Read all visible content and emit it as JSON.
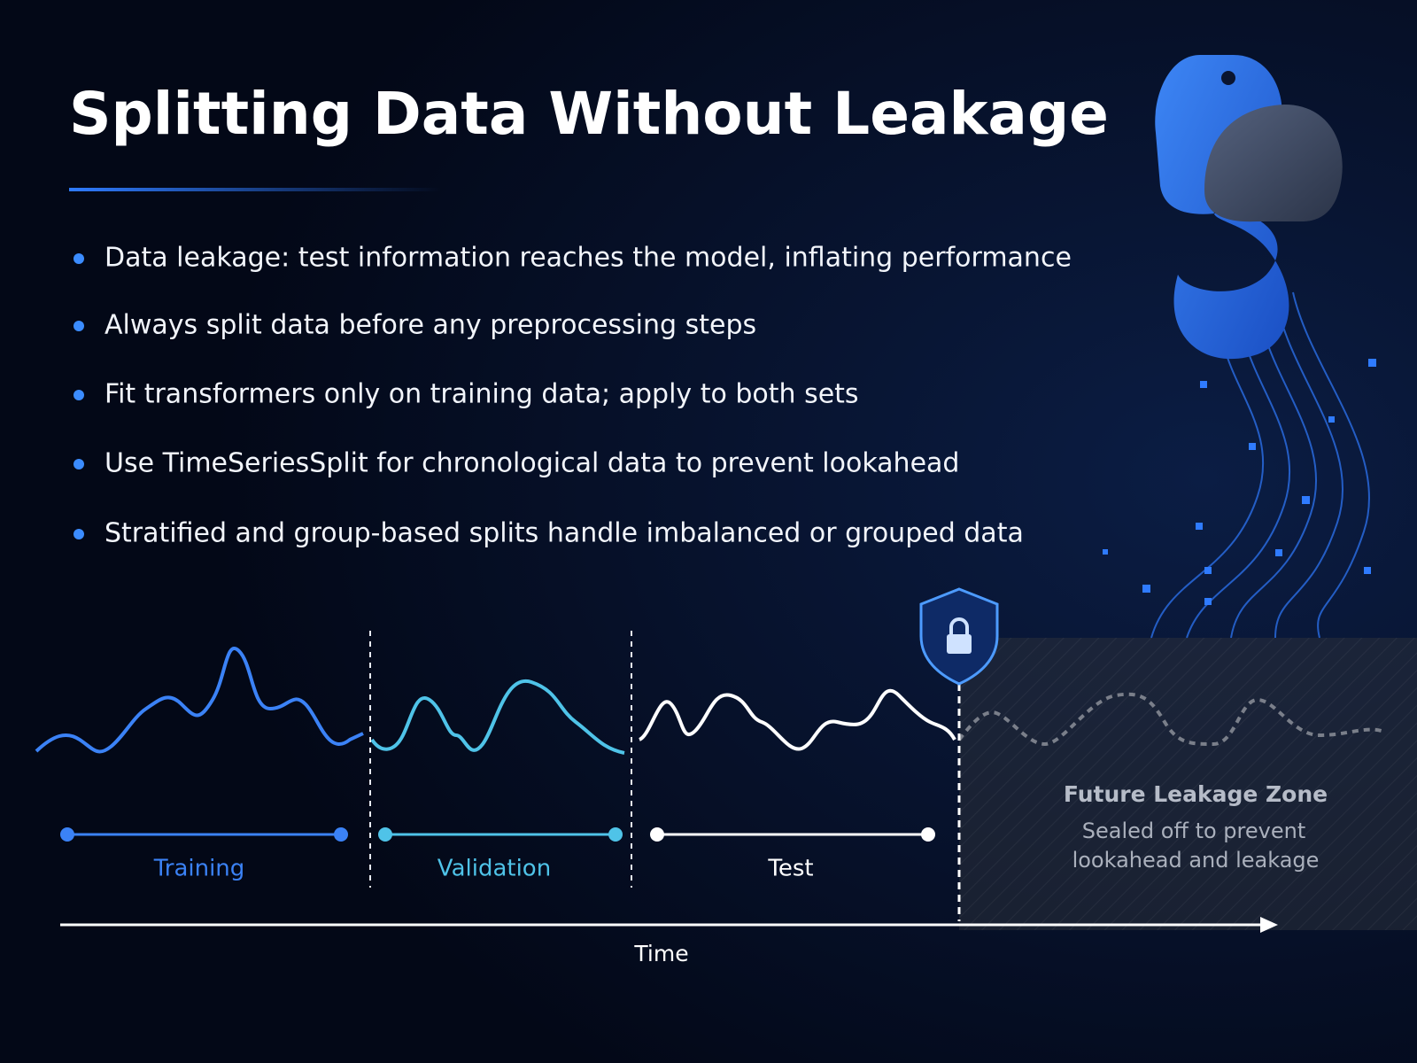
{
  "title": "Splitting Data Without Leakage",
  "bullets": [
    "Data leakage: test information reaches the model, inflating performance",
    "Always split data before any preprocessing steps",
    "Fit transformers only on training data; apply to both sets",
    "Use TimeSeriesSplit for chronological data to prevent lookahead",
    "Stratified and group-based splits handle imbalanced or grouped data"
  ],
  "timeline": {
    "segments": [
      {
        "label": "Training"
      },
      {
        "label": "Validation"
      },
      {
        "label": "Test"
      }
    ],
    "zone": {
      "title": "Future Leakage Zone",
      "description": [
        "Sealed off to prevent",
        "lookahead and leakage"
      ]
    },
    "axis_label": "Time"
  }
}
